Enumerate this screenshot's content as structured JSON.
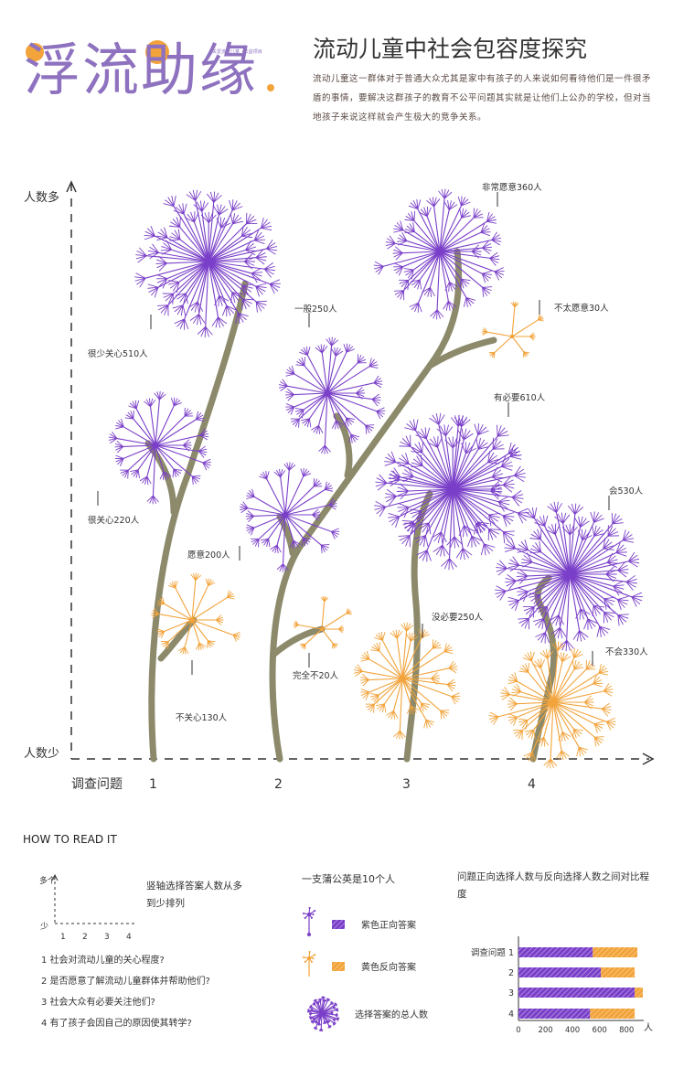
{
  "header": {
    "logo_text": "浮流助缘",
    "logo_small_text": "关爱流动儿童 · 公益项目",
    "title": "流动儿童中社会包容度探究",
    "description": "流动儿童这一群体对于普通大众尤其是家中有孩子的人来说如何看待他们是一件很矛盾的事情，要解决这群孩子的教育不公平问题其实就是让他们上公办的学校，但对当地孩子来说这样就会产生极大的竞争关系。"
  },
  "colors": {
    "positive": "#7a3fc8",
    "negative": "#f2a33a",
    "stem": "#8c8a6b",
    "axis": "#333333"
  },
  "chart_data": [
    {
      "type": "dandelion",
      "y_axis_top_label": "人数多",
      "y_axis_bottom_label": "人数少",
      "x_axis_label": "调查问题",
      "categories": [
        "1",
        "2",
        "3",
        "4"
      ],
      "flowers": [
        {
          "question": "1",
          "label": "很少关心510人",
          "count": 510,
          "kind": "positive"
        },
        {
          "question": "1",
          "label": "很关心220人",
          "count": 220,
          "kind": "positive"
        },
        {
          "question": "1",
          "label": "不关心130人",
          "count": 130,
          "kind": "negative"
        },
        {
          "question": "2",
          "label": "一般250人",
          "count": 250,
          "kind": "positive"
        },
        {
          "question": "2",
          "label": "愿意200人",
          "count": 200,
          "kind": "positive"
        },
        {
          "question": "2",
          "label": "完全不20人",
          "count": 20,
          "kind": "negative"
        },
        {
          "question": "3",
          "label": "非常愿意360人",
          "count": 360,
          "kind": "positive"
        },
        {
          "question": "3",
          "label": "不太愿意30人",
          "count": 30,
          "kind": "negative"
        },
        {
          "question": "3",
          "label": "有必要610人",
          "count": 610,
          "kind": "positive"
        },
        {
          "question": "3",
          "label": "没必要250人",
          "count": 250,
          "kind": "negative"
        },
        {
          "question": "4",
          "label": "会530人",
          "count": 530,
          "kind": "positive"
        },
        {
          "question": "4",
          "label": "不会330人",
          "count": 330,
          "kind": "negative"
        }
      ]
    },
    {
      "type": "bar",
      "orientation": "horizontal",
      "stacked": true,
      "title": "问题正向选择人数与反向选择人数之间对比程度",
      "categories": [
        "调查问题 1",
        "2",
        "3",
        "4"
      ],
      "series": [
        {
          "name": "紫色正向答案",
          "values": [
            550,
            610,
            860,
            530
          ]
        },
        {
          "name": "黄色反向答案",
          "values": [
            330,
            250,
            60,
            330
          ]
        }
      ],
      "x_ticks": [
        "0",
        "200",
        "400",
        "600",
        "800"
      ],
      "x_unit": "人",
      "xlim": [
        0,
        900
      ]
    }
  ],
  "how_to": {
    "heading": "HOW TO READ IT",
    "axis_top": "多个",
    "axis_bottom": "少",
    "axis_ticks": [
      "1",
      "2",
      "3",
      "4"
    ],
    "axis_note": "竖轴选择答案人数从多到少排列",
    "questions": [
      "1 社会对流动儿童的关心程度?",
      "2 是否愿意了解流动儿童群体并帮助他们?",
      "3 社会大众有必要关注他们?",
      "4 有了孩子会因自己的原因使其转学?"
    ]
  },
  "legend": {
    "title": "一支蒲公英是10个人",
    "positive_label": "紫色正向答案",
    "negative_label": "黄色反向答案",
    "cluster_label": "选择答案的总人数"
  }
}
